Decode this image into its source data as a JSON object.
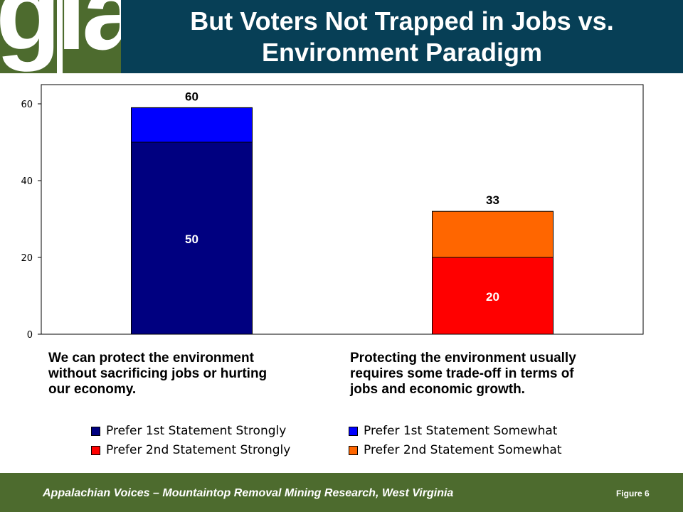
{
  "logo": {
    "text": "gla"
  },
  "title": "But Voters Not Trapped in Jobs  vs. Environment Paradigm",
  "chart_data": {
    "type": "bar",
    "stacked": true,
    "categories": [
      "We can protect the environment\nwithout sacrificing jobs or hurting\nour economy.",
      "Protecting the environment usually\nrequires some trade-off in terms of\njobs and economic growth."
    ],
    "series": [
      {
        "name": "Prefer 1st Statement Strongly",
        "color": "#000080",
        "values": [
          50,
          0
        ],
        "inner_labels": [
          "50",
          ""
        ]
      },
      {
        "name": "Prefer 1st Statement Somewhat",
        "color": "#0000ff",
        "values": [
          9,
          0
        ],
        "inner_labels": [
          "",
          ""
        ]
      },
      {
        "name": "Prefer 2nd Statement Strongly",
        "color": "#ff0000",
        "values": [
          0,
          20
        ],
        "inner_labels": [
          "",
          "20"
        ]
      },
      {
        "name": "Prefer 2nd Statement Somewhat",
        "color": "#ff6600",
        "values": [
          0,
          12
        ],
        "inner_labels": [
          "",
          ""
        ]
      }
    ],
    "total_labels": [
      "60",
      "33"
    ],
    "ylim": [
      0,
      65
    ],
    "yticks": [
      0,
      20,
      40,
      60
    ],
    "grid": false,
    "legend_position": "bottom"
  },
  "legend": [
    {
      "label": "Prefer 1st Statement Strongly",
      "color": "#000080"
    },
    {
      "label": "Prefer 1st Statement Somewhat",
      "color": "#0000ff"
    },
    {
      "label": "Prefer 2nd Statement Strongly",
      "color": "#ff0000"
    },
    {
      "label": "Prefer 2nd Statement Somewhat",
      "color": "#ff6600"
    }
  ],
  "footer": {
    "text": "Appalachian Voices – Mountaintop Removal Mining Research, West Virginia",
    "figure": "Figure 6"
  },
  "colors": {
    "title_bg": "#073f56",
    "brand_green": "#4d6b2e"
  }
}
